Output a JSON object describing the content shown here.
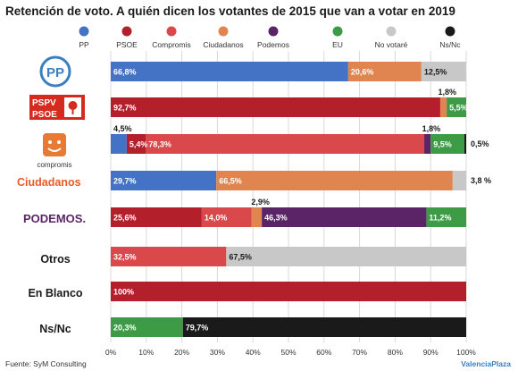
{
  "title": "Retención de voto. A quién dicen los votantes de 2015 que van a votar en 2019",
  "source": "Fuente: SyM Consulting",
  "brand": "ValenciaPlaza",
  "logos": {
    "pp": "PP",
    "psoe_top": "PSPV",
    "psoe_bottom": "PSOE",
    "compromis": "compromis",
    "ciudadanos": "Ciudadanos",
    "podemos": "PODEMOS."
  },
  "chart_data": {
    "type": "bar",
    "orientation": "horizontal",
    "stacked": true,
    "title": "Retención de voto. A quién dicen los votantes de 2015 que van a votar en 2019",
    "xlim": [
      0,
      100
    ],
    "x_ticks": [
      "0%",
      "10%",
      "20%",
      "30%",
      "40%",
      "50%",
      "60%",
      "70%",
      "80%",
      "90%",
      "100%"
    ],
    "legend_position": "top",
    "categories": [
      "PP",
      "PSOE",
      "Compromís",
      "Ciudadanos",
      "Podemos",
      "Otros",
      "En Blanco",
      "Ns/Nc"
    ],
    "series": [
      {
        "name": "PP",
        "color": "#4472c4",
        "values": [
          66.8,
          0,
          4.5,
          29.7,
          0,
          0,
          0,
          0
        ],
        "labels": [
          "66,8%",
          "",
          "4,5%",
          "29,7%",
          "",
          "",
          "",
          ""
        ]
      },
      {
        "name": "PSOE",
        "color": "#b3202c",
        "values": [
          0,
          92.7,
          5.4,
          0,
          25.6,
          0,
          100,
          0
        ],
        "labels": [
          "",
          "92,7%",
          "5,4%",
          "",
          "25,6%",
          "",
          "100%",
          ""
        ]
      },
      {
        "name": "Compromis",
        "color": "#d9484a",
        "values": [
          0,
          0,
          78.3,
          0,
          14.0,
          32.5,
          0,
          0
        ],
        "labels": [
          "",
          "",
          "78,3%",
          "",
          "14,0%",
          "32,5%",
          "",
          ""
        ]
      },
      {
        "name": "Ciudadanos",
        "color": "#e0854f",
        "values": [
          20.6,
          1.8,
          0,
          66.5,
          2.9,
          0,
          0,
          0
        ],
        "labels": [
          "20,6%",
          "1,8%",
          "",
          "66,5%",
          "2,9%",
          "",
          "",
          ""
        ]
      },
      {
        "name": "Podemos",
        "color": "#5a2466",
        "values": [
          0,
          0,
          1.8,
          0,
          46.3,
          0,
          0,
          0
        ],
        "labels": [
          "",
          "",
          "1,8%",
          "",
          "46,3%",
          "",
          "",
          ""
        ]
      },
      {
        "name": "EU",
        "color": "#3d9a45",
        "values": [
          0,
          5.5,
          9.5,
          0,
          11.2,
          0,
          0,
          20.3
        ],
        "labels": [
          "",
          "5,5%",
          "9,5%",
          "",
          "11,2%",
          "",
          "",
          "20,3%"
        ]
      },
      {
        "name": "No votaré",
        "color": "#c8c8c8",
        "values": [
          12.5,
          0,
          0,
          3.8,
          0,
          67.5,
          0,
          0
        ],
        "labels": [
          "12,5%",
          "",
          "",
          "3,8 %",
          "",
          "67,5%",
          "",
          ""
        ]
      },
      {
        "name": "Ns/Nc",
        "color": "#1a1a1a",
        "values": [
          0,
          0,
          0.5,
          0,
          0,
          0,
          0,
          79.7
        ],
        "labels": [
          "",
          "",
          "0,5%",
          "",
          "",
          "",
          "",
          "79,7%"
        ]
      }
    ]
  }
}
